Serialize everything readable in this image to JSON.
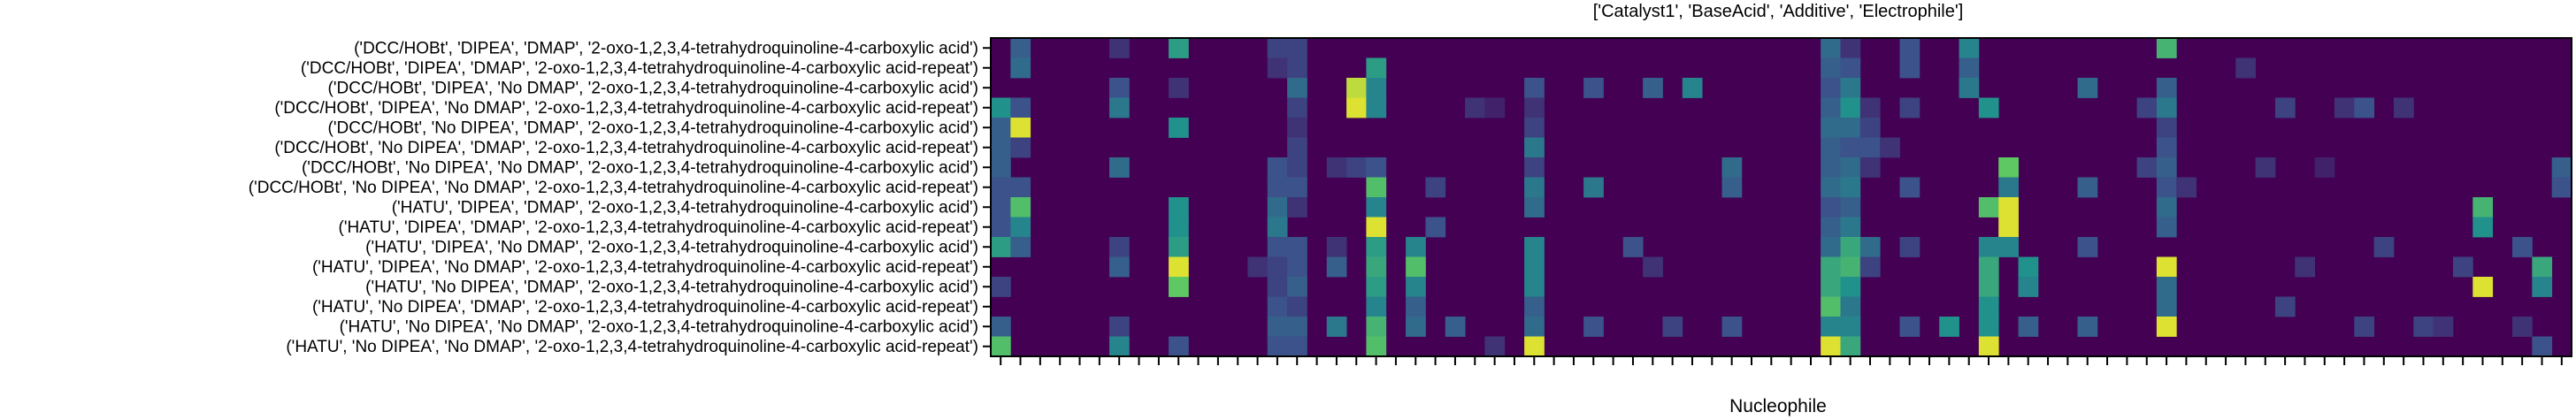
{
  "chart_data": {
    "type": "heatmap",
    "title": "['Catalyst1', 'BaseAcid', 'Additive', 'Electrophile']",
    "xlabel": "Nucleophile",
    "ylabel": "",
    "x_tick_labels_visible": false,
    "colormap": "viridis",
    "value_range": [
      0,
      1
    ],
    "n_cols": 80,
    "rows": [
      "('DCC/HOBt', 'DIPEA', 'DMAP', '2-oxo-1,2,3,4-tetrahydroquinoline-4-carboxylic acid')",
      "('DCC/HOBt', 'DIPEA', 'DMAP', '2-oxo-1,2,3,4-tetrahydroquinoline-4-carboxylic acid-repeat')",
      "('DCC/HOBt', 'DIPEA', 'No DMAP', '2-oxo-1,2,3,4-tetrahydroquinoline-4-carboxylic acid')",
      "('DCC/HOBt', 'DIPEA', 'No DMAP', '2-oxo-1,2,3,4-tetrahydroquinoline-4-carboxylic acid-repeat')",
      "('DCC/HOBt', 'No DIPEA', 'DMAP', '2-oxo-1,2,3,4-tetrahydroquinoline-4-carboxylic acid')",
      "('DCC/HOBt', 'No DIPEA', 'DMAP', '2-oxo-1,2,3,4-tetrahydroquinoline-4-carboxylic acid-repeat')",
      "('DCC/HOBt', 'No DIPEA', 'No DMAP', '2-oxo-1,2,3,4-tetrahydroquinoline-4-carboxylic acid')",
      "('DCC/HOBt', 'No DIPEA', 'No DMAP', '2-oxo-1,2,3,4-tetrahydroquinoline-4-carboxylic acid-repeat')",
      "('HATU', 'DIPEA', 'DMAP', '2-oxo-1,2,3,4-tetrahydroquinoline-4-carboxylic acid')",
      "('HATU', 'DIPEA', 'DMAP', '2-oxo-1,2,3,4-tetrahydroquinoline-4-carboxylic acid-repeat')",
      "('HATU', 'DIPEA', 'No DMAP', '2-oxo-1,2,3,4-tetrahydroquinoline-4-carboxylic acid')",
      "('HATU', 'DIPEA', 'No DMAP', '2-oxo-1,2,3,4-tetrahydroquinoline-4-carboxylic acid-repeat')",
      "('HATU', 'No DIPEA', 'DMAP', '2-oxo-1,2,3,4-tetrahydroquinoline-4-carboxylic acid')",
      "('HATU', 'No DIPEA', 'DMAP', '2-oxo-1,2,3,4-tetrahydroquinoline-4-carboxylic acid-repeat')",
      "('HATU', 'No DIPEA', 'No DMAP', '2-oxo-1,2,3,4-tetrahydroquinoline-4-carboxylic acid')",
      "('HATU', 'No DIPEA', 'No DMAP', '2-oxo-1,2,3,4-tetrahydroquinoline-4-carboxylic acid-repeat')"
    ],
    "cells": [
      [
        0,
        1,
        0.3
      ],
      [
        0,
        6,
        0.15
      ],
      [
        0,
        9,
        0.55
      ],
      [
        0,
        14,
        0.2
      ],
      [
        0,
        15,
        0.2
      ],
      [
        0,
        42,
        0.35
      ],
      [
        0,
        43,
        0.15
      ],
      [
        0,
        46,
        0.25
      ],
      [
        0,
        49,
        0.45
      ],
      [
        0,
        59,
        0.65
      ],
      [
        1,
        1,
        0.35
      ],
      [
        1,
        14,
        0.15
      ],
      [
        1,
        15,
        0.2
      ],
      [
        1,
        19,
        0.55
      ],
      [
        1,
        42,
        0.3
      ],
      [
        1,
        43,
        0.25
      ],
      [
        1,
        46,
        0.25
      ],
      [
        1,
        49,
        0.3
      ],
      [
        1,
        63,
        0.15
      ],
      [
        2,
        6,
        0.25
      ],
      [
        2,
        9,
        0.15
      ],
      [
        2,
        15,
        0.35
      ],
      [
        2,
        18,
        0.9
      ],
      [
        2,
        19,
        0.45
      ],
      [
        2,
        27,
        0.25
      ],
      [
        2,
        30,
        0.25
      ],
      [
        2,
        33,
        0.3
      ],
      [
        2,
        35,
        0.45
      ],
      [
        2,
        42,
        0.25
      ],
      [
        2,
        43,
        0.4
      ],
      [
        2,
        49,
        0.4
      ],
      [
        2,
        55,
        0.35
      ],
      [
        2,
        59,
        0.3
      ],
      [
        3,
        0,
        0.5
      ],
      [
        3,
        1,
        0.25
      ],
      [
        3,
        6,
        0.4
      ],
      [
        3,
        15,
        0.2
      ],
      [
        3,
        18,
        0.95
      ],
      [
        3,
        19,
        0.45
      ],
      [
        3,
        24,
        0.15
      ],
      [
        3,
        25,
        0.1
      ],
      [
        3,
        27,
        0.15
      ],
      [
        3,
        42,
        0.3
      ],
      [
        3,
        43,
        0.5
      ],
      [
        3,
        44,
        0.15
      ],
      [
        3,
        46,
        0.2
      ],
      [
        3,
        50,
        0.5
      ],
      [
        3,
        58,
        0.2
      ],
      [
        3,
        59,
        0.4
      ],
      [
        3,
        65,
        0.2
      ],
      [
        3,
        68,
        0.15
      ],
      [
        3,
        69,
        0.25
      ],
      [
        3,
        71,
        0.15
      ],
      [
        4,
        0,
        0.3
      ],
      [
        4,
        1,
        0.95
      ],
      [
        4,
        9,
        0.5
      ],
      [
        4,
        15,
        0.15
      ],
      [
        4,
        27,
        0.2
      ],
      [
        4,
        42,
        0.35
      ],
      [
        4,
        43,
        0.35
      ],
      [
        4,
        44,
        0.2
      ],
      [
        4,
        59,
        0.2
      ],
      [
        5,
        0,
        0.3
      ],
      [
        5,
        1,
        0.2
      ],
      [
        5,
        15,
        0.2
      ],
      [
        5,
        27,
        0.4
      ],
      [
        5,
        42,
        0.3
      ],
      [
        5,
        43,
        0.25
      ],
      [
        5,
        44,
        0.25
      ],
      [
        5,
        45,
        0.15
      ],
      [
        5,
        59,
        0.25
      ],
      [
        6,
        0,
        0.3
      ],
      [
        6,
        6,
        0.35
      ],
      [
        6,
        14,
        0.25
      ],
      [
        6,
        15,
        0.2
      ],
      [
        6,
        17,
        0.15
      ],
      [
        6,
        18,
        0.2
      ],
      [
        6,
        19,
        0.25
      ],
      [
        6,
        27,
        0.2
      ],
      [
        6,
        37,
        0.35
      ],
      [
        6,
        42,
        0.3
      ],
      [
        6,
        43,
        0.35
      ],
      [
        6,
        44,
        0.15
      ],
      [
        6,
        51,
        0.75
      ],
      [
        6,
        58,
        0.2
      ],
      [
        6,
        59,
        0.3
      ],
      [
        6,
        64,
        0.15
      ],
      [
        6,
        67,
        0.1
      ],
      [
        6,
        79,
        0.3
      ],
      [
        7,
        0,
        0.25
      ],
      [
        7,
        1,
        0.25
      ],
      [
        7,
        14,
        0.25
      ],
      [
        7,
        15,
        0.25
      ],
      [
        7,
        19,
        0.7
      ],
      [
        7,
        22,
        0.2
      ],
      [
        7,
        27,
        0.4
      ],
      [
        7,
        30,
        0.4
      ],
      [
        7,
        37,
        0.3
      ],
      [
        7,
        42,
        0.35
      ],
      [
        7,
        43,
        0.4
      ],
      [
        7,
        46,
        0.25
      ],
      [
        7,
        51,
        0.4
      ],
      [
        7,
        55,
        0.3
      ],
      [
        7,
        59,
        0.25
      ],
      [
        7,
        60,
        0.15
      ],
      [
        7,
        79,
        0.25
      ],
      [
        8,
        0,
        0.25
      ],
      [
        8,
        1,
        0.7
      ],
      [
        8,
        9,
        0.5
      ],
      [
        8,
        14,
        0.35
      ],
      [
        8,
        15,
        0.15
      ],
      [
        8,
        19,
        0.45
      ],
      [
        8,
        27,
        0.35
      ],
      [
        8,
        42,
        0.25
      ],
      [
        8,
        43,
        0.3
      ],
      [
        8,
        50,
        0.7
      ],
      [
        8,
        51,
        0.95
      ],
      [
        8,
        59,
        0.35
      ],
      [
        8,
        75,
        0.65
      ],
      [
        9,
        0,
        0.25
      ],
      [
        9,
        1,
        0.45
      ],
      [
        9,
        9,
        0.5
      ],
      [
        9,
        14,
        0.4
      ],
      [
        9,
        19,
        0.95
      ],
      [
        9,
        22,
        0.25
      ],
      [
        9,
        42,
        0.3
      ],
      [
        9,
        43,
        0.4
      ],
      [
        9,
        51,
        0.95
      ],
      [
        9,
        59,
        0.3
      ],
      [
        9,
        75,
        0.5
      ],
      [
        10,
        0,
        0.55
      ],
      [
        10,
        1,
        0.3
      ],
      [
        10,
        6,
        0.2
      ],
      [
        10,
        9,
        0.55
      ],
      [
        10,
        14,
        0.25
      ],
      [
        10,
        15,
        0.25
      ],
      [
        10,
        17,
        0.15
      ],
      [
        10,
        19,
        0.55
      ],
      [
        10,
        21,
        0.45
      ],
      [
        10,
        27,
        0.45
      ],
      [
        10,
        32,
        0.25
      ],
      [
        10,
        42,
        0.35
      ],
      [
        10,
        43,
        0.6
      ],
      [
        10,
        44,
        0.35
      ],
      [
        10,
        46,
        0.2
      ],
      [
        10,
        50,
        0.45
      ],
      [
        10,
        51,
        0.45
      ],
      [
        10,
        55,
        0.25
      ],
      [
        10,
        70,
        0.2
      ],
      [
        10,
        77,
        0.25
      ],
      [
        11,
        6,
        0.3
      ],
      [
        11,
        9,
        0.95
      ],
      [
        11,
        13,
        0.15
      ],
      [
        11,
        14,
        0.2
      ],
      [
        11,
        15,
        0.25
      ],
      [
        11,
        17,
        0.3
      ],
      [
        11,
        19,
        0.6
      ],
      [
        11,
        21,
        0.7
      ],
      [
        11,
        27,
        0.45
      ],
      [
        11,
        33,
        0.15
      ],
      [
        11,
        42,
        0.6
      ],
      [
        11,
        43,
        0.65
      ],
      [
        11,
        44,
        0.2
      ],
      [
        11,
        50,
        0.6
      ],
      [
        11,
        52,
        0.5
      ],
      [
        11,
        59,
        0.95
      ],
      [
        11,
        66,
        0.15
      ],
      [
        11,
        74,
        0.2
      ],
      [
        11,
        78,
        0.6
      ],
      [
        12,
        0,
        0.2
      ],
      [
        12,
        9,
        0.75
      ],
      [
        12,
        14,
        0.2
      ],
      [
        12,
        15,
        0.3
      ],
      [
        12,
        19,
        0.55
      ],
      [
        12,
        21,
        0.45
      ],
      [
        12,
        27,
        0.45
      ],
      [
        12,
        42,
        0.6
      ],
      [
        12,
        43,
        0.5
      ],
      [
        12,
        50,
        0.6
      ],
      [
        12,
        52,
        0.45
      ],
      [
        12,
        59,
        0.35
      ],
      [
        12,
        75,
        0.95
      ],
      [
        12,
        78,
        0.45
      ],
      [
        13,
        14,
        0.25
      ],
      [
        13,
        15,
        0.2
      ],
      [
        13,
        19,
        0.45
      ],
      [
        13,
        21,
        0.3
      ],
      [
        13,
        27,
        0.3
      ],
      [
        13,
        42,
        0.7
      ],
      [
        13,
        43,
        0.4
      ],
      [
        13,
        50,
        0.5
      ],
      [
        13,
        59,
        0.35
      ],
      [
        13,
        65,
        0.2
      ],
      [
        14,
        0,
        0.3
      ],
      [
        14,
        6,
        0.2
      ],
      [
        14,
        14,
        0.3
      ],
      [
        14,
        15,
        0.3
      ],
      [
        14,
        17,
        0.4
      ],
      [
        14,
        19,
        0.65
      ],
      [
        14,
        21,
        0.35
      ],
      [
        14,
        23,
        0.3
      ],
      [
        14,
        27,
        0.35
      ],
      [
        14,
        30,
        0.25
      ],
      [
        14,
        34,
        0.2
      ],
      [
        14,
        37,
        0.25
      ],
      [
        14,
        42,
        0.45
      ],
      [
        14,
        43,
        0.45
      ],
      [
        14,
        46,
        0.25
      ],
      [
        14,
        48,
        0.5
      ],
      [
        14,
        50,
        0.5
      ],
      [
        14,
        52,
        0.3
      ],
      [
        14,
        55,
        0.3
      ],
      [
        14,
        59,
        0.95
      ],
      [
        14,
        69,
        0.2
      ],
      [
        14,
        72,
        0.2
      ],
      [
        14,
        73,
        0.15
      ],
      [
        14,
        77,
        0.15
      ],
      [
        15,
        0,
        0.7
      ],
      [
        15,
        6,
        0.45
      ],
      [
        15,
        9,
        0.25
      ],
      [
        15,
        14,
        0.25
      ],
      [
        15,
        15,
        0.25
      ],
      [
        15,
        19,
        0.7
      ],
      [
        15,
        25,
        0.15
      ],
      [
        15,
        27,
        0.95
      ],
      [
        15,
        42,
        0.95
      ],
      [
        15,
        43,
        0.6
      ],
      [
        15,
        50,
        0.95
      ],
      [
        15,
        78,
        0.25
      ]
    ]
  }
}
